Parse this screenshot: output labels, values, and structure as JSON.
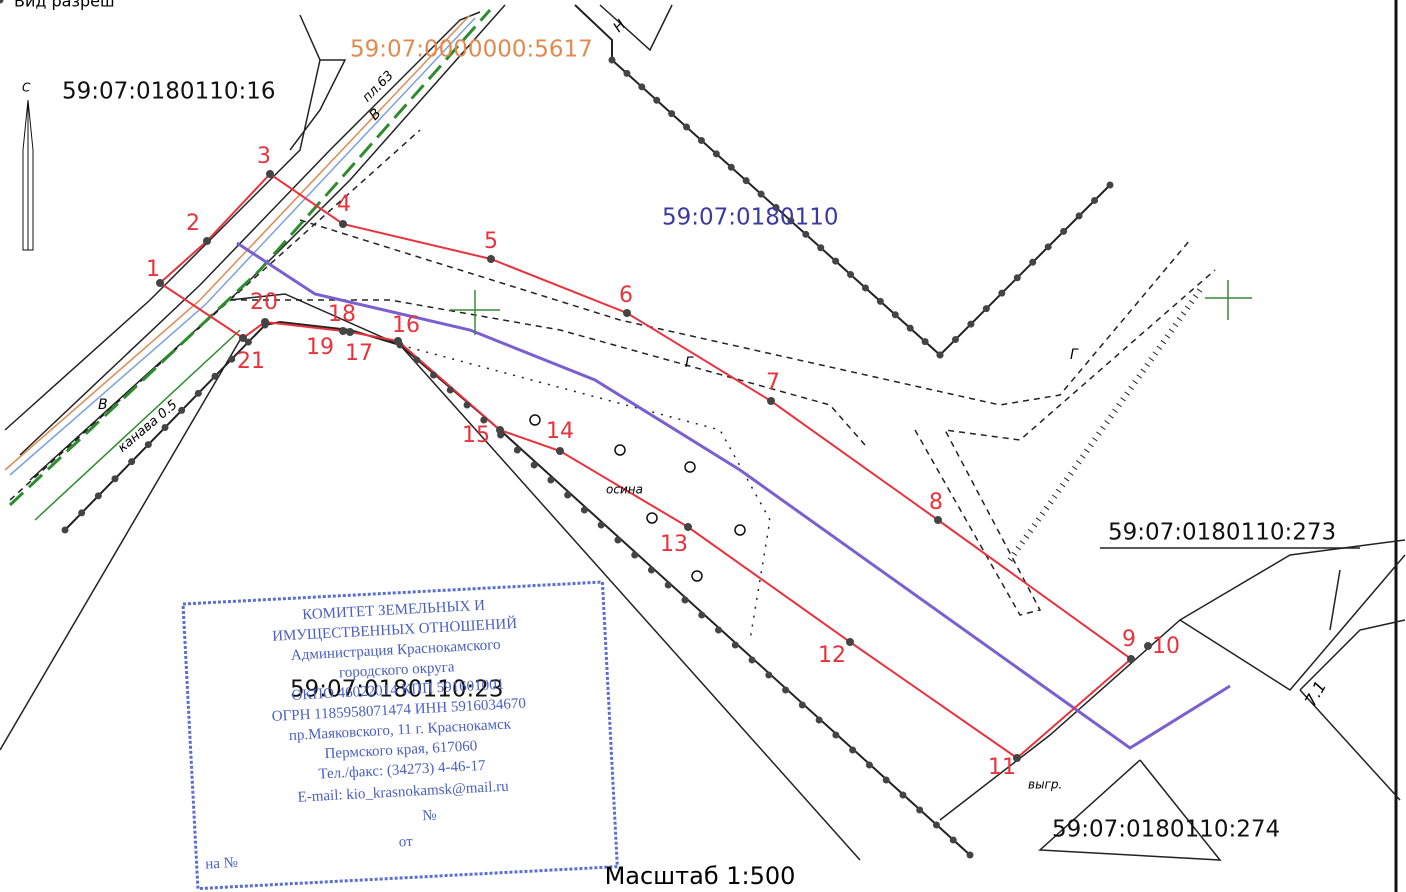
{
  "header": {
    "note": "Вид разреш"
  },
  "parcels": [
    "59:07:0000000:5617",
    "59:07:0180110:16",
    "59:07:0180110",
    "59:07:0180110:273",
    "59:07:0180110:23",
    "59:07:0180110:274"
  ],
  "points": [
    "1",
    "2",
    "3",
    "4",
    "5",
    "6",
    "7",
    "8",
    "9",
    "10",
    "11",
    "12",
    "13",
    "14",
    "15",
    "16",
    "17",
    "18",
    "19",
    "20",
    "21"
  ],
  "annotations": [
    "пл.63",
    "В",
    "Г",
    "канава 0.5",
    "осина",
    "выгр.",
    "Н",
    "С",
    "7.1",
    "Г",
    "В"
  ],
  "stamp": [
    "КОМИТЕТ ЗЕМЕЛЬНЫХ И",
    "ИМУЩЕСТВЕННЫХ ОТНОШЕНИЙ",
    "Администрация Краснокамского",
    "городского округа",
    "ОКПО 46022014 КПП 591601001",
    "ОГРН 1185958071474 ИНН 5916034670",
    "пр.Маяковского, 11 г. Краснокамск",
    "Пермского края, 617060",
    "Тел./факс: (34273) 4-46-17",
    "E-mail: kio_krasnokamsk@mail.ru",
    "№",
    "на №",
    "от"
  ],
  "scale": "Масштаб 1:500"
}
